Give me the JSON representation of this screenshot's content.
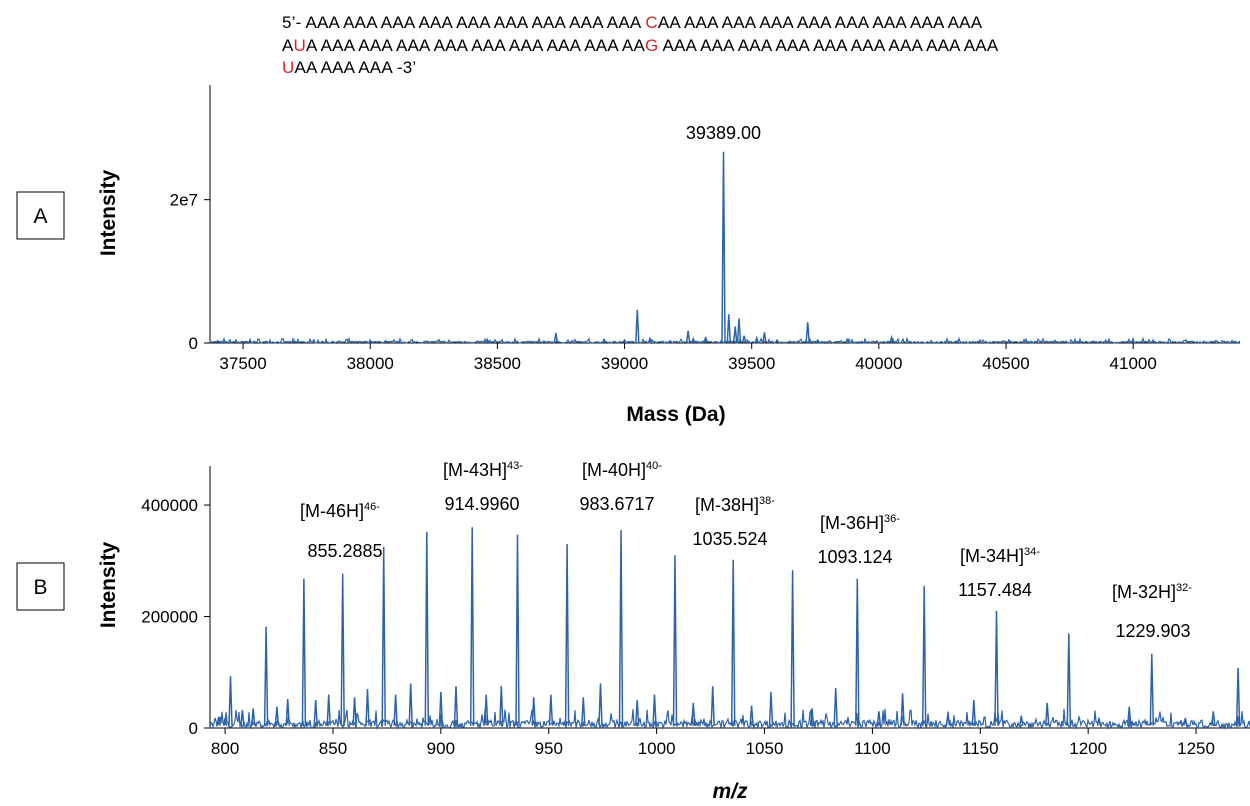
{
  "sequence": {
    "lines": [
      [
        {
          "t": "5’- AAA AAA AAA AAA AAA AAA AAA AAA AAA ",
          "red": false
        },
        {
          "t": "C",
          "red": true
        },
        {
          "t": "AA AAA AAA AAA AAA AAA AAA AAA AAA",
          "red": false
        }
      ],
      [
        {
          "t": "A",
          "red": false
        },
        {
          "t": "U",
          "red": true
        },
        {
          "t": "A AAA AAA AAA AAA AAA AAA AAA AAA AA",
          "red": false
        },
        {
          "t": "G",
          "red": true
        },
        {
          "t": " AAA AAA AAA AAA AAA AAA AAA AAA AAA",
          "red": false
        }
      ],
      [
        {
          "t": "U",
          "red": true
        },
        {
          "t": "AA AAA AAA -3’",
          "red": false
        }
      ]
    ],
    "highlight_color": "#d62728"
  },
  "chart_data": [
    {
      "panel": "A",
      "type": "line",
      "xlabel": "Mass (Da)",
      "ylabel": "Intensity",
      "xlim": [
        37370,
        41420
      ],
      "ylim": [
        0,
        36000000.0
      ],
      "xticks": [
        37500,
        38000,
        38500,
        39000,
        39500,
        40000,
        40500,
        41000
      ],
      "yticks": [
        0,
        20000000.0
      ],
      "ytick_labels": [
        "0",
        "2e7"
      ],
      "baseline_noise": 250000.0,
      "peaks": [
        {
          "x": 37400,
          "y": 300000.0
        },
        {
          "x": 37530,
          "y": 200000.0
        },
        {
          "x": 37700,
          "y": 200000.0
        },
        {
          "x": 38000,
          "y": 200000.0
        },
        {
          "x": 38060,
          "y": 300000.0
        },
        {
          "x": 38250,
          "y": 200000.0
        },
        {
          "x": 38460,
          "y": 500000.0
        },
        {
          "x": 38730,
          "y": 1400000.0
        },
        {
          "x": 38920,
          "y": 500000.0
        },
        {
          "x": 39000,
          "y": 400000.0
        },
        {
          "x": 39050,
          "y": 4600000.0
        },
        {
          "x": 39100,
          "y": 600000.0
        },
        {
          "x": 39180,
          "y": 300000.0
        },
        {
          "x": 39250,
          "y": 1700000.0
        },
        {
          "x": 39270,
          "y": 600000.0
        },
        {
          "x": 39320,
          "y": 700000.0
        },
        {
          "x": 39389,
          "y": 26700000.0
        },
        {
          "x": 39410,
          "y": 4000000.0
        },
        {
          "x": 39435,
          "y": 2300000.0
        },
        {
          "x": 39450,
          "y": 3400000.0
        },
        {
          "x": 39470,
          "y": 1000000.0
        },
        {
          "x": 39520,
          "y": 700000.0
        },
        {
          "x": 39550,
          "y": 1500000.0
        },
        {
          "x": 39600,
          "y": 400000.0
        },
        {
          "x": 39720,
          "y": 2900000.0
        },
        {
          "x": 39760,
          "y": 400000.0
        },
        {
          "x": 40050,
          "y": 800000.0
        },
        {
          "x": 40300,
          "y": 200000.0
        },
        {
          "x": 40600,
          "y": 200000.0
        },
        {
          "x": 41000,
          "y": 200000.0
        }
      ],
      "annotations": [
        {
          "text": "39389.00",
          "x": 39389,
          "y": 28500000.0
        }
      ],
      "line_color": "#2f63a8"
    },
    {
      "panel": "B",
      "type": "line",
      "xlabel": "m/z",
      "ylabel": "Intensity",
      "xlim": [
        793,
        1275
      ],
      "ylim": [
        0,
        470000
      ],
      "xticks": [
        800,
        850,
        900,
        950,
        1000,
        1050,
        1100,
        1150,
        1200,
        1250
      ],
      "yticks": [
        0,
        200000,
        400000
      ],
      "baseline_noise": 14000,
      "peaks": [
        {
          "x": 797,
          "y": 20000
        },
        {
          "x": 800,
          "y": 18000
        },
        {
          "x": 802.5,
          "y": 93000
        },
        {
          "x": 808,
          "y": 32000
        },
        {
          "x": 813,
          "y": 35000
        },
        {
          "x": 819,
          "y": 182000
        },
        {
          "x": 824,
          "y": 38000
        },
        {
          "x": 829,
          "y": 52000
        },
        {
          "x": 836.5,
          "y": 268000
        },
        {
          "x": 842,
          "y": 50000
        },
        {
          "x": 848,
          "y": 60000
        },
        {
          "x": 854.5,
          "y": 277000
        },
        {
          "x": 860,
          "y": 55000
        },
        {
          "x": 866,
          "y": 70000
        },
        {
          "x": 873.5,
          "y": 325000
        },
        {
          "x": 879,
          "y": 60000
        },
        {
          "x": 886,
          "y": 80000
        },
        {
          "x": 893.5,
          "y": 352000
        },
        {
          "x": 900,
          "y": 65000
        },
        {
          "x": 907,
          "y": 75000
        },
        {
          "x": 914.5,
          "y": 360000
        },
        {
          "x": 921,
          "y": 60000
        },
        {
          "x": 928,
          "y": 75000
        },
        {
          "x": 935.5,
          "y": 347000
        },
        {
          "x": 943,
          "y": 55000
        },
        {
          "x": 951,
          "y": 60000
        },
        {
          "x": 958.5,
          "y": 330000
        },
        {
          "x": 966,
          "y": 55000
        },
        {
          "x": 974,
          "y": 80000
        },
        {
          "x": 983.5,
          "y": 355000
        },
        {
          "x": 991,
          "y": 50000
        },
        {
          "x": 999,
          "y": 60000
        },
        {
          "x": 1008.5,
          "y": 310000
        },
        {
          "x": 1017,
          "y": 45000
        },
        {
          "x": 1026,
          "y": 75000
        },
        {
          "x": 1035.5,
          "y": 302000
        },
        {
          "x": 1044,
          "y": 40000
        },
        {
          "x": 1053,
          "y": 65000
        },
        {
          "x": 1063,
          "y": 283000
        },
        {
          "x": 1072,
          "y": 35000
        },
        {
          "x": 1083,
          "y": 72000
        },
        {
          "x": 1093,
          "y": 268000
        },
        {
          "x": 1103,
          "y": 30000
        },
        {
          "x": 1114,
          "y": 62000
        },
        {
          "x": 1124,
          "y": 255000
        },
        {
          "x": 1135,
          "y": 25000
        },
        {
          "x": 1147,
          "y": 50000
        },
        {
          "x": 1157.5,
          "y": 210000
        },
        {
          "x": 1169,
          "y": 22000
        },
        {
          "x": 1181,
          "y": 45000
        },
        {
          "x": 1191,
          "y": 170000
        },
        {
          "x": 1205,
          "y": 18000
        },
        {
          "x": 1219,
          "y": 38000
        },
        {
          "x": 1229.5,
          "y": 133000
        },
        {
          "x": 1245,
          "y": 18000
        },
        {
          "x": 1258,
          "y": 30000
        },
        {
          "x": 1269.5,
          "y": 108000
        }
      ],
      "annotations": [
        {
          "ion": "[M-46H]",
          "charge": "46-",
          "mz": "855.2885"
        },
        {
          "ion": "[M-43H]",
          "charge": "43-",
          "mz": "914.9960"
        },
        {
          "ion": "[M-40H]",
          "charge": "40-",
          "mz": "983.6717"
        },
        {
          "ion": "[M-38H]",
          "charge": "38-",
          "mz": "1035.524"
        },
        {
          "ion": "[M-36H]",
          "charge": "36-",
          "mz": "1093.124"
        },
        {
          "ion": "[M-34H]",
          "charge": "34-",
          "mz": "1157.484"
        },
        {
          "ion": "[M-32H]",
          "charge": "32-",
          "mz": "1229.903"
        }
      ],
      "line_color": "#2f63a8"
    }
  ]
}
